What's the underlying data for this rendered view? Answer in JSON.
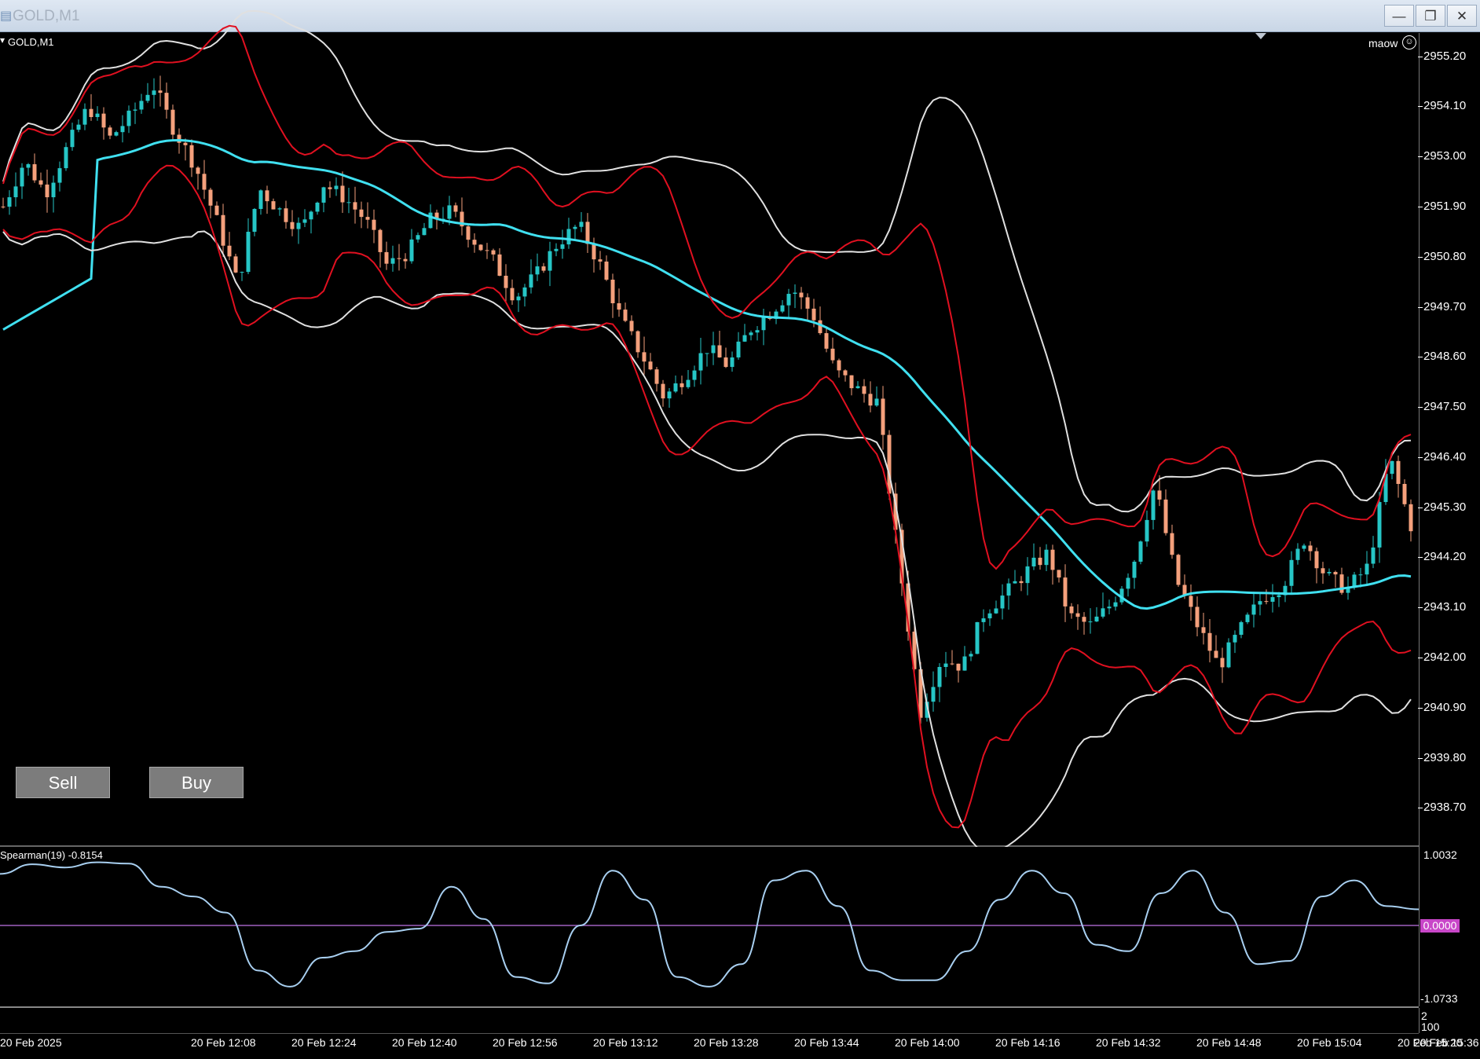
{
  "window": {
    "title": "GOLD,M1",
    "minimize_icon": "minimize-icon",
    "maximize_icon": "restore-icon",
    "close_icon": "close-icon"
  },
  "chart": {
    "label": "GOLD,M1",
    "account": "maow",
    "buttons": {
      "sell": "Sell",
      "buy": "Buy"
    },
    "price_ticks": [
      "2955.20",
      "2954.10",
      "2953.00",
      "2951.90",
      "2950.80",
      "2949.70",
      "2948.60",
      "2947.50",
      "2946.40",
      "2945.30",
      "2944.20",
      "2943.10",
      "2942.00",
      "2940.90",
      "2939.80",
      "2938.70"
    ],
    "time_ticks": [
      "20 Feb 2025",
      "20 Feb 12:08",
      "20 Feb 12:24",
      "20 Feb 12:40",
      "20 Feb 12:56",
      "20 Feb 13:12",
      "20 Feb 13:28",
      "20 Feb 13:44",
      "20 Feb 14:00",
      "20 Feb 14:16",
      "20 Feb 14:32",
      "20 Feb 14:48",
      "20 Feb 15:04",
      "20 Feb 15:20",
      "20 Feb 15:36"
    ],
    "colors": {
      "bull": "#26c6c6",
      "bear": "#f4a07c",
      "ma": "#40e0f0",
      "bb_outer": "#e0e0e0",
      "bb_inner": "#e01020",
      "osc": "#a8cff0",
      "zero": "#a060c0"
    }
  },
  "indicator": {
    "label": "Spearman(19) -0.8154",
    "ticks": [
      "1.0032",
      "0.0000",
      "-1.0733"
    ]
  },
  "sub_panel": {
    "ticks": [
      "2",
      "100"
    ]
  },
  "chart_data": {
    "type": "candlestick",
    "symbol": "GOLD",
    "timeframe": "M1",
    "ylim": [
      2938.5,
      2955.4
    ],
    "close_series_approx": [
      2951.9,
      2952.9,
      2952.2,
      2953.2,
      2954.1,
      2953.4,
      2953.9,
      2954.6,
      2953.6,
      2952.8,
      2951.6,
      2950.2,
      2952.3,
      2951.8,
      2951.4,
      2952.4,
      2952.1,
      2951.6,
      2950.6,
      2950.9,
      2951.6,
      2951.8,
      2951.2,
      2950.7,
      2949.9,
      2950.4,
      2951.1,
      2951.5,
      2950.6,
      2949.4,
      2948.6,
      2947.7,
      2948.2,
      2948.8,
      2948.4,
      2949.2,
      2949.6,
      2950.1,
      2949.5,
      2948.3,
      2947.9,
      2947.6,
      2944.1,
      2940.8,
      2942.0,
      2941.8,
      2943.0,
      2943.4,
      2943.9,
      2944.3,
      2942.9,
      2942.7,
      2943.2,
      2944.1,
      2945.8,
      2943.7,
      2942.7,
      2941.8,
      2942.6,
      2943.3,
      2943.6,
      2944.6,
      2943.8,
      2943.5,
      2944.0,
      2946.4,
      2944.9
    ],
    "spearman_series_approx": [
      0.8,
      0.95,
      0.9,
      0.98,
      0.96,
      0.6,
      0.45,
      0.2,
      -0.7,
      -0.95,
      -0.5,
      -0.4,
      -0.1,
      -0.05,
      0.6,
      0.1,
      -0.8,
      -0.9,
      0.0,
      0.85,
      0.4,
      -0.8,
      -0.95,
      -0.6,
      0.7,
      0.85,
      0.3,
      -0.7,
      -0.85,
      -0.85,
      -0.4,
      0.4,
      0.85,
      0.5,
      -0.3,
      -0.4,
      0.5,
      0.85,
      0.2,
      -0.6,
      -0.55,
      0.45,
      0.7,
      0.3,
      0.25
    ]
  }
}
